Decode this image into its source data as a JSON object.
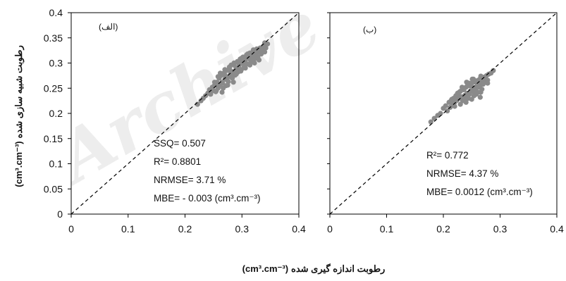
{
  "chart_data": [
    {
      "type": "scatter",
      "panel_label": "(الف)",
      "xlim": [
        0,
        0.4
      ],
      "ylim": [
        0,
        0.4
      ],
      "x_ticks": [
        "0",
        "0.1",
        "0.2",
        "0.3",
        "0.4"
      ],
      "y_ticks": [
        "0",
        "0.05",
        "0.1",
        "0.15",
        "0.2",
        "0.25",
        "0.3",
        "0.35",
        "0.4"
      ],
      "one_to_one_line": true,
      "annotations": [
        "SSQ= 0.507",
        "R²= 0.8801",
        "NRMSE= 3.71 %",
        "MBE= - 0.003 (cm³.cm⁻³)"
      ],
      "x": [
        0.222,
        0.228,
        0.232,
        0.236,
        0.24,
        0.243,
        0.245,
        0.248,
        0.25,
        0.252,
        0.254,
        0.256,
        0.258,
        0.26,
        0.262,
        0.263,
        0.265,
        0.267,
        0.268,
        0.27,
        0.272,
        0.273,
        0.275,
        0.276,
        0.278,
        0.28,
        0.281,
        0.283,
        0.285,
        0.286,
        0.288,
        0.29,
        0.292,
        0.293,
        0.295,
        0.297,
        0.299,
        0.3,
        0.302,
        0.304,
        0.306,
        0.308,
        0.31,
        0.312,
        0.314,
        0.316,
        0.318,
        0.32,
        0.322,
        0.324,
        0.326,
        0.328,
        0.33,
        0.332,
        0.334,
        0.336,
        0.338,
        0.34,
        0.342,
        0.345,
        0.252,
        0.258,
        0.262,
        0.266,
        0.27,
        0.274,
        0.278,
        0.282,
        0.286,
        0.29,
        0.294,
        0.298,
        0.302,
        0.306,
        0.31,
        0.314,
        0.318,
        0.322,
        0.326,
        0.33,
        0.255,
        0.26,
        0.265,
        0.27,
        0.275,
        0.28,
        0.285,
        0.29,
        0.295,
        0.3,
        0.305,
        0.31,
        0.315,
        0.32,
        0.325,
        0.335,
        0.34
      ],
      "y": [
        0.218,
        0.225,
        0.23,
        0.235,
        0.24,
        0.247,
        0.238,
        0.252,
        0.245,
        0.256,
        0.243,
        0.262,
        0.25,
        0.27,
        0.257,
        0.275,
        0.262,
        0.25,
        0.28,
        0.268,
        0.255,
        0.285,
        0.272,
        0.263,
        0.29,
        0.278,
        0.296,
        0.27,
        0.283,
        0.3,
        0.276,
        0.29,
        0.303,
        0.282,
        0.295,
        0.308,
        0.287,
        0.3,
        0.312,
        0.293,
        0.305,
        0.316,
        0.298,
        0.31,
        0.32,
        0.303,
        0.314,
        0.325,
        0.308,
        0.318,
        0.328,
        0.312,
        0.322,
        0.33,
        0.318,
        0.326,
        0.334,
        0.322,
        0.33,
        0.338,
        0.262,
        0.273,
        0.28,
        0.26,
        0.287,
        0.266,
        0.292,
        0.272,
        0.296,
        0.278,
        0.3,
        0.284,
        0.305,
        0.29,
        0.31,
        0.296,
        0.315,
        0.3,
        0.32,
        0.306,
        0.245,
        0.255,
        0.242,
        0.276,
        0.256,
        0.284,
        0.262,
        0.28,
        0.29,
        0.31,
        0.298,
        0.318,
        0.306,
        0.326,
        0.314,
        0.325,
        0.34
      ]
    },
    {
      "type": "scatter",
      "panel_label": "(ب)",
      "xlim": [
        0,
        0.4
      ],
      "ylim": [
        0,
        0.4
      ],
      "x_ticks": [
        "0",
        "0.1",
        "0.2",
        "0.3",
        "0.4"
      ],
      "y_ticks": [],
      "one_to_one_line": true,
      "annotations": [
        "R²= 0.772",
        "NRMSE= 4.37 %",
        "MBE= 0.0012 (cm³.cm⁻³)"
      ],
      "x": [
        0.178,
        0.184,
        0.19,
        0.195,
        0.2,
        0.204,
        0.207,
        0.21,
        0.212,
        0.214,
        0.216,
        0.218,
        0.22,
        0.222,
        0.224,
        0.226,
        0.228,
        0.23,
        0.232,
        0.234,
        0.236,
        0.238,
        0.24,
        0.242,
        0.244,
        0.246,
        0.248,
        0.25,
        0.252,
        0.254,
        0.256,
        0.258,
        0.26,
        0.262,
        0.264,
        0.266,
        0.268,
        0.27,
        0.272,
        0.274,
        0.276,
        0.278,
        0.28,
        0.284,
        0.288,
        0.215,
        0.22,
        0.225,
        0.23,
        0.235,
        0.24,
        0.245,
        0.25,
        0.255,
        0.26,
        0.265,
        0.27,
        0.228,
        0.233,
        0.238,
        0.243,
        0.248,
        0.253,
        0.258,
        0.263,
        0.268,
        0.273,
        0.278,
        0.236,
        0.241,
        0.246,
        0.251,
        0.256,
        0.261,
        0.266,
        0.244,
        0.249,
        0.254,
        0.259,
        0.264
      ],
      "y": [
        0.183,
        0.19,
        0.196,
        0.2,
        0.21,
        0.215,
        0.205,
        0.222,
        0.212,
        0.226,
        0.218,
        0.23,
        0.222,
        0.235,
        0.226,
        0.238,
        0.23,
        0.244,
        0.233,
        0.225,
        0.247,
        0.236,
        0.252,
        0.24,
        0.23,
        0.255,
        0.243,
        0.26,
        0.248,
        0.235,
        0.262,
        0.25,
        0.265,
        0.255,
        0.268,
        0.242,
        0.27,
        0.258,
        0.272,
        0.262,
        0.275,
        0.266,
        0.278,
        0.28,
        0.285,
        0.228,
        0.214,
        0.24,
        0.218,
        0.248,
        0.222,
        0.26,
        0.228,
        0.24,
        0.255,
        0.232,
        0.264,
        0.242,
        0.252,
        0.228,
        0.258,
        0.245,
        0.268,
        0.238,
        0.26,
        0.248,
        0.27,
        0.26,
        0.232,
        0.262,
        0.238,
        0.268,
        0.25,
        0.242,
        0.274,
        0.236,
        0.255,
        0.246,
        0.262,
        0.252
      ]
    }
  ],
  "x_axis_title_text": "رطوبت اندازه گیری شده",
  "x_axis_title_unit": "(cm³.cm⁻³)",
  "y_axis_title_text": "رطوبت شبیه سازی شده",
  "y_axis_title_unit": "(cm³.cm⁻³)",
  "watermark": "Archive",
  "colors": {
    "points": "#8a8a8a",
    "line": "#000000",
    "frame": "#000000"
  }
}
